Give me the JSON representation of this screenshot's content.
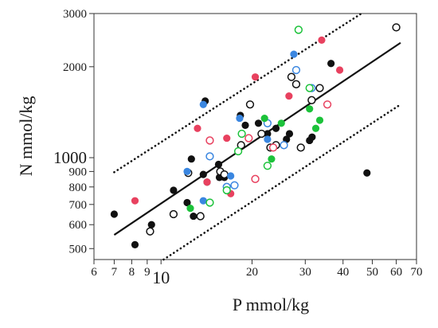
{
  "chart_data": {
    "type": "scatter",
    "title": "",
    "xlabel": "P mmol/kg",
    "ylabel": "N mmol/kg",
    "x_scale": "log",
    "y_scale": "log",
    "xlim": [
      6,
      70
    ],
    "ylim": [
      460,
      3000
    ],
    "grid": false,
    "legend": "none",
    "x_ticks": [
      {
        "value": 6,
        "label": "6",
        "major": false
      },
      {
        "value": 7,
        "label": "7",
        "major": false
      },
      {
        "value": 8,
        "label": "8",
        "major": false
      },
      {
        "value": 9,
        "label": "9",
        "major": false
      },
      {
        "value": 10,
        "label": "10",
        "major": true
      },
      {
        "value": 20,
        "label": "20",
        "major": false
      },
      {
        "value": 30,
        "label": "30",
        "major": false
      },
      {
        "value": 40,
        "label": "40",
        "major": false
      },
      {
        "value": 50,
        "label": "50",
        "major": false
      },
      {
        "value": 60,
        "label": "60",
        "major": false
      },
      {
        "value": 70,
        "label": "70",
        "major": false
      }
    ],
    "y_ticks": [
      {
        "value": 500,
        "label": "500",
        "major": false
      },
      {
        "value": 600,
        "label": "600",
        "major": false
      },
      {
        "value": 700,
        "label": "700",
        "major": false
      },
      {
        "value": 800,
        "label": "800",
        "major": false
      },
      {
        "value": 900,
        "label": "900",
        "major": false
      },
      {
        "value": 1000,
        "label": "1000",
        "major": true
      },
      {
        "value": 2000,
        "label": "2000",
        "major": false
      },
      {
        "value": 3000,
        "label": "3000",
        "major": false
      }
    ],
    "colors": {
      "black": "#111111",
      "blue": "#3a86e0",
      "red": "#e8415f",
      "green": "#1cc23a"
    },
    "lines": [
      {
        "style": "solid",
        "points": [
          [
            7,
            555
          ],
          [
            62,
            2400
          ]
        ]
      },
      {
        "style": "dotted",
        "points": [
          [
            7,
            895
          ],
          [
            46,
            3000
          ]
        ]
      },
      {
        "style": "dotted",
        "points": [
          [
            10.2,
            460
          ],
          [
            62,
            1500
          ]
        ]
      }
    ],
    "series": [
      {
        "color": "black",
        "filled": true,
        "points": [
          [
            7,
            650
          ],
          [
            8.2,
            515
          ],
          [
            9.3,
            600
          ],
          [
            11,
            780
          ],
          [
            12.2,
            710
          ],
          [
            12.6,
            990
          ],
          [
            12.8,
            640
          ],
          [
            13.8,
            880
          ],
          [
            14,
            1540
          ],
          [
            14.2,
            830
          ],
          [
            15.5,
            950
          ],
          [
            15.6,
            860
          ],
          [
            16.2,
            860
          ],
          [
            18.3,
            1380
          ],
          [
            19,
            1280
          ],
          [
            21,
            1300
          ],
          [
            22.5,
            1200
          ],
          [
            24,
            1250
          ],
          [
            26,
            1150
          ],
          [
            26.6,
            1200
          ],
          [
            31,
            1140
          ],
          [
            31.6,
            1170
          ],
          [
            36.5,
            2050
          ],
          [
            48,
            890
          ]
        ]
      },
      {
        "color": "black",
        "filled": false,
        "points": [
          [
            9.2,
            570
          ],
          [
            11,
            650
          ],
          [
            12.3,
            890
          ],
          [
            13.5,
            640
          ],
          [
            15.7,
            900
          ],
          [
            16.2,
            880
          ],
          [
            18.4,
            1100
          ],
          [
            19.7,
            1500
          ],
          [
            21.5,
            1200
          ],
          [
            23,
            1080
          ],
          [
            24,
            1100
          ],
          [
            27,
            1850
          ],
          [
            28,
            1750
          ],
          [
            29,
            1080
          ],
          [
            31.5,
            1550
          ],
          [
            33.5,
            1700
          ],
          [
            60,
            2700
          ]
        ]
      },
      {
        "color": "blue",
        "filled": true,
        "points": [
          [
            12.2,
            900
          ],
          [
            13.8,
            1500
          ],
          [
            13.8,
            720
          ],
          [
            17,
            870
          ],
          [
            18.2,
            1350
          ],
          [
            22.5,
            1150
          ],
          [
            27.5,
            2200
          ]
        ]
      },
      {
        "color": "blue",
        "filled": false,
        "points": [
          [
            14.5,
            1010
          ],
          [
            16.5,
            800
          ],
          [
            17.5,
            810
          ],
          [
            22.5,
            1300
          ],
          [
            25.5,
            1100
          ],
          [
            28,
            1950
          ],
          [
            31.5,
            1700
          ]
        ]
      },
      {
        "color": "red",
        "filled": true,
        "points": [
          [
            8.2,
            720
          ],
          [
            13.2,
            1250
          ],
          [
            14.2,
            830
          ],
          [
            16.5,
            1160
          ],
          [
            17,
            760
          ],
          [
            20.5,
            1850
          ],
          [
            26.5,
            1600
          ],
          [
            34,
            2450
          ],
          [
            39,
            1950
          ]
        ]
      },
      {
        "color": "red",
        "filled": false,
        "points": [
          [
            14.5,
            1140
          ],
          [
            19.5,
            1160
          ],
          [
            20.5,
            850
          ],
          [
            23.5,
            1080
          ],
          [
            35.5,
            1500
          ]
        ]
      },
      {
        "color": "green",
        "filled": true,
        "points": [
          [
            12.5,
            680
          ],
          [
            18.5,
            1200
          ],
          [
            22,
            1350
          ],
          [
            23.2,
            990
          ],
          [
            25,
            1300
          ],
          [
            31,
            1450
          ],
          [
            32.5,
            1250
          ],
          [
            33.5,
            1330
          ]
        ]
      },
      {
        "color": "green",
        "filled": false,
        "points": [
          [
            14.5,
            710
          ],
          [
            16.5,
            780
          ],
          [
            18,
            1050
          ],
          [
            18.5,
            1200
          ],
          [
            22.5,
            940
          ],
          [
            28.5,
            2650
          ],
          [
            31,
            1700
          ]
        ]
      }
    ]
  }
}
